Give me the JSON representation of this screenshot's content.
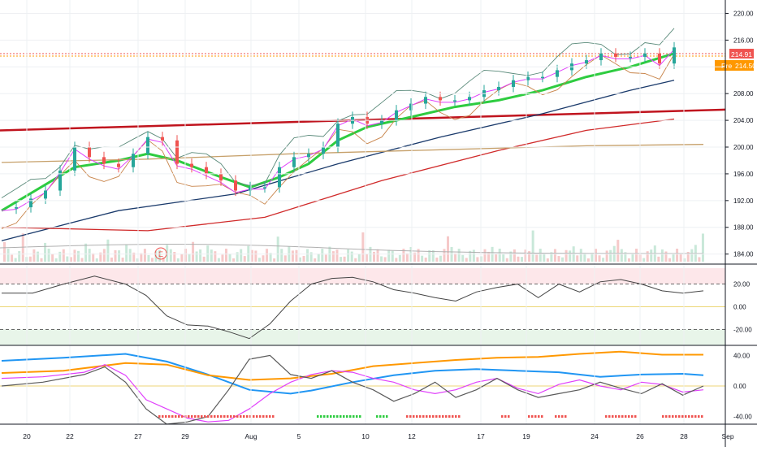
{
  "chart_data": [
    {
      "type": "candlestick",
      "panel": "price",
      "series": [
        {
          "name": "price",
          "points": [
            [
              0,
              190.8
            ],
            [
              1,
              191.0
            ],
            [
              2,
              192.3
            ],
            [
              3,
              193.5
            ],
            [
              4,
              196.5
            ],
            [
              5,
              200.0
            ],
            [
              6,
              198.5
            ],
            [
              7,
              197.5
            ],
            [
              8,
              197.0
            ],
            [
              9,
              199.0
            ],
            [
              10,
              201.5
            ],
            [
              11,
              201.0
            ],
            [
              12,
              197.5
            ],
            [
              13,
              197.0
            ],
            [
              14,
              196.0
            ],
            [
              15,
              195.0
            ],
            [
              16,
              193.5
            ],
            [
              17,
              194.0
            ],
            [
              18,
              194.0
            ],
            [
              19,
              197.0
            ],
            [
              20,
              198.5
            ],
            [
              21,
              199.0
            ],
            [
              22,
              200.0
            ],
            [
              23,
              203.5
            ],
            [
              24,
              204.5
            ],
            [
              25,
              203.5
            ],
            [
              26,
              204.0
            ],
            [
              27,
              205.5
            ],
            [
              28,
              206.5
            ],
            [
              29,
              207.5
            ],
            [
              30,
              207.0
            ],
            [
              31,
              207.0
            ],
            [
              32,
              207.5
            ],
            [
              33,
              208.5
            ],
            [
              34,
              209.0
            ],
            [
              35,
              210.0
            ],
            [
              36,
              210.5
            ],
            [
              37,
              210.5
            ],
            [
              38,
              211.5
            ],
            [
              39,
              212.5
            ],
            [
              40,
              213.0
            ],
            [
              41,
              214.0
            ],
            [
              42,
              213.5
            ],
            [
              43,
              213.5
            ],
            [
              44,
              214.0
            ],
            [
              45,
              212.5
            ],
            [
              46,
              214.91
            ]
          ]
        }
      ],
      "moving_averages": [
        {
          "color": "#2ecc40",
          "values": [
            [
              0,
              190.5
            ],
            [
              5,
              197.0
            ],
            [
              8,
              198.0
            ],
            [
              10,
              199.0
            ],
            [
              12,
              198.0
            ],
            [
              15,
              195.5
            ],
            [
              17,
              194.0
            ],
            [
              19,
              195.5
            ],
            [
              21,
              197.5
            ],
            [
              23,
              201.0
            ],
            [
              25,
              203.0
            ],
            [
              28,
              204.5
            ],
            [
              31,
              206.0
            ],
            [
              34,
              207.0
            ],
            [
              37,
              208.5
            ],
            [
              40,
              210.5
            ],
            [
              43,
              212.0
            ],
            [
              46,
              214.0
            ]
          ]
        },
        {
          "color": "#1a3a6b",
          "values": [
            [
              0,
              186.0
            ],
            [
              8,
              190.5
            ],
            [
              16,
              193.0
            ],
            [
              23,
              197.5
            ],
            [
              30,
              201.5
            ],
            [
              37,
              205.0
            ],
            [
              43,
              208.5
            ],
            [
              46,
              210.0
            ]
          ]
        },
        {
          "color": "#d02a2a",
          "values": [
            [
              0,
              188.0
            ],
            [
              10,
              187.5
            ],
            [
              18,
              189.5
            ],
            [
              26,
              195.0
            ],
            [
              34,
              199.5
            ],
            [
              40,
              202.5
            ],
            [
              46,
              204.2
            ]
          ]
        },
        {
          "color": "#c6a06a",
          "values": [
            [
              0,
              197.7
            ],
            [
              10,
              198.2
            ],
            [
              20,
              199.0
            ],
            [
              30,
              199.6
            ],
            [
              40,
              200.2
            ],
            [
              48,
              200.4
            ]
          ]
        }
      ],
      "trendline": {
        "color": "#c0141e",
        "start": [
          0,
          202.5
        ],
        "end": [
          48,
          205.6
        ]
      },
      "x_ticks": [
        "20",
        "22",
        "27",
        "29",
        "Aug",
        "5",
        "10",
        "12",
        "17",
        "19",
        "24",
        "26",
        "28",
        "Sep"
      ],
      "y_ticks": [
        "220.00",
        "216.00",
        "212.00",
        "208.00",
        "204.00",
        "200.00",
        "196.00",
        "192.00",
        "188.00",
        "184.00"
      ],
      "price_labels": {
        "last": "214.91",
        "pre_tag": "Pre",
        "pre": "214.50"
      },
      "last_color": "#ef5350",
      "pre_color": "#ff9800",
      "earnings_marker": "E",
      "grid": true
    },
    {
      "type": "line",
      "panel": "oscillator",
      "series": [
        {
          "values": [
            [
              0,
              12
            ],
            [
              3,
              12
            ],
            [
              6,
              20
            ],
            [
              9,
              27
            ],
            [
              12,
              20
            ],
            [
              14,
              10
            ],
            [
              16,
              -8
            ],
            [
              18,
              -16
            ],
            [
              20,
              -17
            ],
            [
              22,
              -22
            ],
            [
              24,
              -28
            ],
            [
              26,
              -15
            ],
            [
              28,
              5
            ],
            [
              30,
              20
            ],
            [
              32,
              25
            ],
            [
              34,
              26
            ],
            [
              36,
              22
            ],
            [
              38,
              15
            ],
            [
              40,
              12
            ],
            [
              42,
              8
            ],
            [
              44,
              5
            ],
            [
              46,
              13
            ],
            [
              48,
              17
            ],
            [
              50,
              20
            ],
            [
              52,
              8
            ],
            [
              54,
              20
            ],
            [
              56,
              13
            ],
            [
              58,
              22
            ],
            [
              60,
              24
            ],
            [
              62,
              20
            ],
            [
              64,
              14
            ],
            [
              66,
              12
            ],
            [
              68,
              14
            ]
          ]
        }
      ],
      "y_ticks": [
        "20.00",
        "0.00",
        "-20.00"
      ],
      "levels": [
        20,
        -20
      ],
      "grid": true
    },
    {
      "type": "line",
      "panel": "dmi",
      "series": [
        {
          "color": "#2196f3",
          "values": [
            [
              0,
              33
            ],
            [
              6,
              37
            ],
            [
              12,
              42
            ],
            [
              16,
              32
            ],
            [
              20,
              15
            ],
            [
              24,
              -5
            ],
            [
              28,
              -10
            ],
            [
              30,
              -6
            ],
            [
              34,
              5
            ],
            [
              38,
              14
            ],
            [
              42,
              20
            ],
            [
              46,
              22
            ],
            [
              50,
              20
            ],
            [
              54,
              18
            ],
            [
              58,
              12
            ],
            [
              62,
              15
            ],
            [
              66,
              16
            ],
            [
              68,
              14
            ]
          ]
        },
        {
          "color": "#ff9800",
          "values": [
            [
              0,
              17
            ],
            [
              6,
              20
            ],
            [
              12,
              30
            ],
            [
              16,
              28
            ],
            [
              20,
              14
            ],
            [
              24,
              8
            ],
            [
              28,
              10
            ],
            [
              32,
              16
            ],
            [
              36,
              26
            ],
            [
              40,
              30
            ],
            [
              44,
              34
            ],
            [
              48,
              37
            ],
            [
              52,
              38
            ],
            [
              56,
              42
            ],
            [
              60,
              45
            ],
            [
              64,
              41
            ],
            [
              68,
              41
            ]
          ]
        },
        {
          "color": "#e040fb",
          "values": [
            [
              0,
              10
            ],
            [
              4,
              12
            ],
            [
              8,
              18
            ],
            [
              10,
              28
            ],
            [
              12,
              14
            ],
            [
              14,
              -18
            ],
            [
              16,
              -30
            ],
            [
              18,
              -42
            ],
            [
              20,
              -47
            ],
            [
              22,
              -45
            ],
            [
              24,
              -30
            ],
            [
              26,
              -10
            ],
            [
              28,
              5
            ],
            [
              30,
              15
            ],
            [
              32,
              20
            ],
            [
              34,
              18
            ],
            [
              36,
              10
            ],
            [
              38,
              5
            ],
            [
              40,
              -5
            ],
            [
              42,
              -10
            ],
            [
              44,
              -5
            ],
            [
              46,
              5
            ],
            [
              48,
              10
            ],
            [
              50,
              -3
            ],
            [
              52,
              -10
            ],
            [
              54,
              2
            ],
            [
              56,
              8
            ],
            [
              58,
              0
            ],
            [
              60,
              -5
            ],
            [
              62,
              5
            ],
            [
              64,
              2
            ],
            [
              66,
              -8
            ],
            [
              68,
              -5
            ]
          ]
        },
        {
          "color": "#5a5a5a",
          "values": [
            [
              0,
              0
            ],
            [
              4,
              5
            ],
            [
              8,
              15
            ],
            [
              10,
              25
            ],
            [
              12,
              5
            ],
            [
              14,
              -30
            ],
            [
              16,
              -50
            ],
            [
              18,
              -47
            ],
            [
              20,
              -40
            ],
            [
              22,
              -5
            ],
            [
              24,
              35
            ],
            [
              26,
              40
            ],
            [
              28,
              15
            ],
            [
              30,
              10
            ],
            [
              32,
              20
            ],
            [
              34,
              5
            ],
            [
              36,
              -5
            ],
            [
              38,
              -20
            ],
            [
              40,
              -10
            ],
            [
              42,
              5
            ],
            [
              44,
              -15
            ],
            [
              46,
              -5
            ],
            [
              48,
              10
            ],
            [
              50,
              -5
            ],
            [
              52,
              -15
            ],
            [
              54,
              -10
            ],
            [
              56,
              -5
            ],
            [
              58,
              5
            ],
            [
              60,
              -3
            ],
            [
              62,
              -10
            ],
            [
              64,
              3
            ],
            [
              66,
              -12
            ],
            [
              68,
              0
            ]
          ]
        }
      ],
      "y_ticks": [
        "40.00",
        "0.00",
        "-40.00"
      ],
      "grid": true
    }
  ]
}
